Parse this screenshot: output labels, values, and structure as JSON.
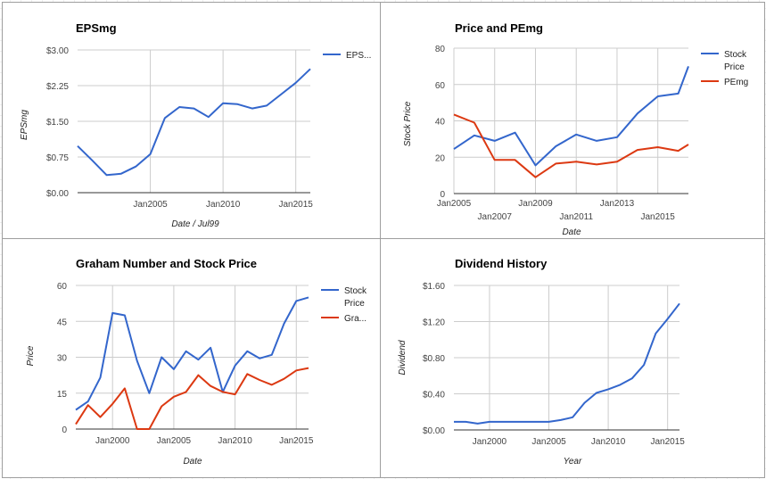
{
  "chart_data": [
    {
      "type": "line",
      "title": "EPSmg",
      "xlabel": "Date / Jul99",
      "ylabel": "EPSmg",
      "yticks": [
        "$0.00",
        "$0.75",
        "$1.50",
        "$2.25",
        "$3.00"
      ],
      "ylim": [
        0,
        3
      ],
      "xticks": [
        "Jan2005",
        "Jan2010",
        "Jan2015"
      ],
      "xlim": [
        2000,
        2016
      ],
      "legend_position": "right",
      "colors": {
        "series1": "#3366cc"
      },
      "series": [
        {
          "name": "EPS...",
          "color": "#3366cc",
          "x": [
            2000,
            2001,
            2002,
            2003,
            2004,
            2005,
            2006,
            2007,
            2008,
            2009,
            2010,
            2011,
            2012,
            2013,
            2014,
            2015,
            2016
          ],
          "values": [
            0.98,
            0.68,
            0.37,
            0.4,
            0.55,
            0.81,
            1.57,
            1.8,
            1.77,
            1.59,
            1.88,
            1.86,
            1.77,
            1.83,
            2.07,
            2.31,
            2.6
          ]
        }
      ]
    },
    {
      "type": "line",
      "title": "Price and PEmg",
      "xlabel": "Date",
      "ylabel": "Stock Price",
      "yticks": [
        "0",
        "20",
        "40",
        "60",
        "80"
      ],
      "ylim": [
        0,
        80
      ],
      "xticks_upper": [
        "Jan2005",
        "Jan2009",
        "Jan2013"
      ],
      "xticks_lower": [
        "Jan2007",
        "Jan2011",
        "Jan2015"
      ],
      "xlim": [
        2005,
        2016.5
      ],
      "legend_position": "right",
      "series": [
        {
          "name": "Stock Price",
          "color": "#3366cc",
          "x": [
            2005,
            2006,
            2007,
            2008,
            2009,
            2010,
            2011,
            2012,
            2013,
            2014,
            2015,
            2016,
            2016.5
          ],
          "values": [
            24.5,
            32,
            29,
            33.5,
            15.5,
            26,
            32.5,
            29,
            31,
            44,
            53.5,
            55,
            70
          ]
        },
        {
          "name": "PEmg",
          "color": "#dc3912",
          "x": [
            2005,
            2006,
            2007,
            2008,
            2009,
            2010,
            2011,
            2012,
            2013,
            2014,
            2015,
            2016,
            2016.5
          ],
          "values": [
            43.5,
            39,
            18.5,
            18.5,
            9,
            16.5,
            17.5,
            16,
            17.5,
            24,
            25.5,
            23.5,
            27
          ]
        }
      ]
    },
    {
      "type": "line",
      "title": "Graham Number and Stock Price",
      "xlabel": "Date",
      "ylabel": "Price",
      "yticks": [
        "0",
        "15",
        "30",
        "45",
        "60"
      ],
      "ylim": [
        0,
        60
      ],
      "xticks": [
        "Jan2000",
        "Jan2005",
        "Jan2010",
        "Jan2015"
      ],
      "xlim": [
        1997,
        2016
      ],
      "legend_position": "right",
      "series": [
        {
          "name": "Stock Price",
          "color": "#3366cc",
          "x": [
            1997,
            1998,
            1999,
            2000,
            2001,
            2002,
            2003,
            2004,
            2005,
            2006,
            2007,
            2008,
            2009,
            2010,
            2011,
            2012,
            2013,
            2014,
            2015,
            2016
          ],
          "values": [
            8,
            11.5,
            21.5,
            48.5,
            47.5,
            28.5,
            15,
            30,
            25,
            32.5,
            29,
            34,
            15.5,
            26.5,
            32.5,
            29.5,
            31,
            44,
            53.5,
            55
          ]
        },
        {
          "name": "Gra...",
          "color": "#dc3912",
          "x": [
            1997,
            1998,
            1999,
            2000,
            2001,
            2002,
            2003,
            2004,
            2005,
            2006,
            2007,
            2008,
            2009,
            2010,
            2011,
            2012,
            2013,
            2014,
            2015,
            2016
          ],
          "values": [
            2,
            10,
            5,
            10.5,
            17,
            0,
            0,
            9.5,
            13.5,
            15.5,
            22.5,
            18,
            15.5,
            14.5,
            23,
            20.5,
            18.5,
            21,
            24.5,
            25.5
          ]
        }
      ]
    },
    {
      "type": "line",
      "title": "Dividend History",
      "xlabel": "Year",
      "ylabel": "Dividend",
      "yticks": [
        "$0.00",
        "$0.40",
        "$0.80",
        "$1.20",
        "$1.60"
      ],
      "ylim": [
        0,
        1.6
      ],
      "xticks": [
        "Jan2000",
        "Jan2005",
        "Jan2010",
        "Jan2015"
      ],
      "xlim": [
        1997,
        2016
      ],
      "legend_position": "none",
      "series": [
        {
          "color": "#3366cc",
          "x": [
            1997,
            1998,
            1999,
            2000,
            2001,
            2002,
            2003,
            2004,
            2005,
            2006,
            2007,
            2008,
            2009,
            2010,
            2011,
            2012,
            2013,
            2014,
            2015,
            2016
          ],
          "values": [
            0.09,
            0.09,
            0.07,
            0.09,
            0.09,
            0.09,
            0.09,
            0.09,
            0.09,
            0.11,
            0.14,
            0.3,
            0.41,
            0.45,
            0.5,
            0.57,
            0.72,
            1.07,
            1.23,
            1.4
          ]
        }
      ]
    }
  ]
}
